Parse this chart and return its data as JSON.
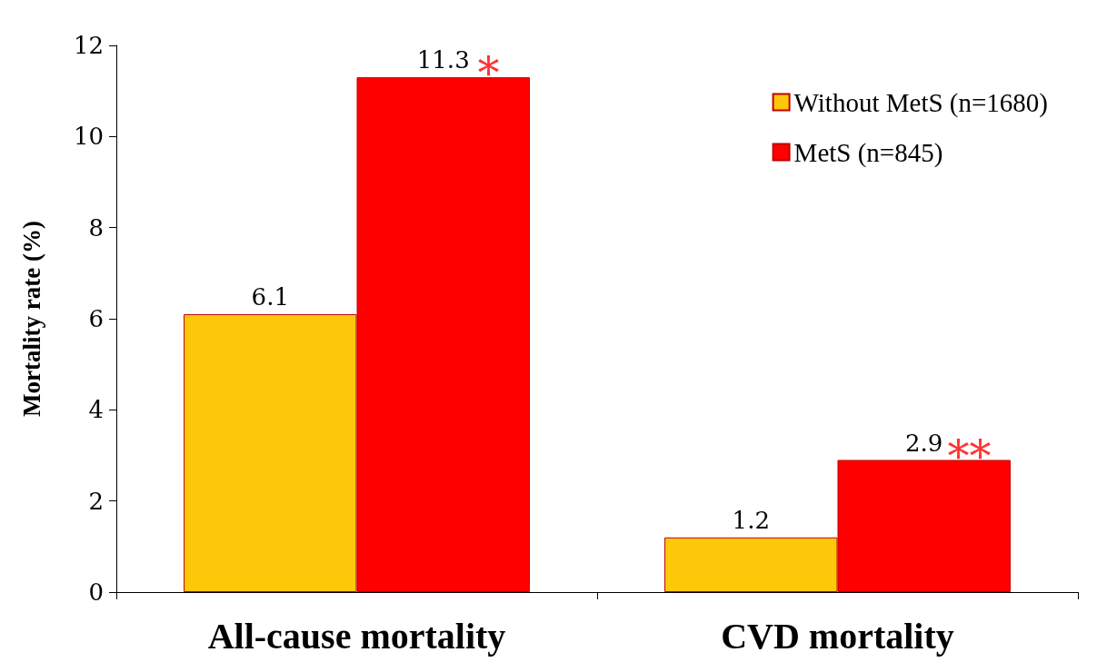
{
  "chart_data": {
    "type": "bar",
    "ylabel": "Mortality rate (%)",
    "categories": [
      "All-cause mortality",
      "CVD mortality"
    ],
    "series": [
      {
        "name": "Without MetS (n=1680)",
        "color": "#fec80a",
        "values": [
          6.1,
          1.2
        ]
      },
      {
        "name": "MetS (n=845)",
        "color": "#fe0000",
        "values": [
          11.3,
          2.9
        ]
      }
    ],
    "ylim": [
      0,
      12
    ],
    "yticks": [
      0,
      2,
      4,
      6,
      8,
      10,
      12
    ],
    "data_labels": true,
    "legend": "top right",
    "grid": false,
    "annotations": [
      {
        "text": "*",
        "x": "All-cause mortality",
        "y": 11.3
      },
      {
        "text": "**",
        "x": "CVD mortality",
        "y": 2.9
      }
    ]
  }
}
